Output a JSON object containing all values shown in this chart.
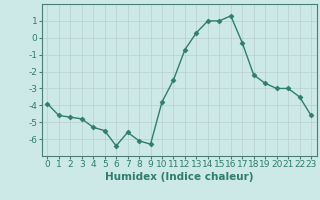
{
  "x": [
    0,
    1,
    2,
    3,
    4,
    5,
    6,
    7,
    8,
    9,
    10,
    11,
    12,
    13,
    14,
    15,
    16,
    17,
    18,
    19,
    20,
    21,
    22,
    23
  ],
  "y": [
    -3.9,
    -4.6,
    -4.7,
    -4.8,
    -5.3,
    -5.5,
    -6.4,
    -5.6,
    -6.1,
    -6.3,
    -3.8,
    -2.5,
    -0.7,
    0.3,
    1.0,
    1.0,
    1.3,
    -0.3,
    -2.2,
    -2.7,
    -3.0,
    -3.0,
    -3.5,
    -4.6
  ],
  "line_color": "#2e7d6e",
  "marker": "D",
  "markersize": 2.5,
  "linewidth": 1.0,
  "bg_color": "#cce9e8",
  "grid_color_minor": "#c8dedd",
  "grid_color_major": "#b8cecd",
  "xlabel": "Humidex (Indice chaleur)",
  "xlim": [
    -0.5,
    23.5
  ],
  "ylim": [
    -7,
    2
  ],
  "yticks": [
    1,
    0,
    -1,
    -2,
    -3,
    -4,
    -5,
    -6
  ],
  "xticks": [
    0,
    1,
    2,
    3,
    4,
    5,
    6,
    7,
    8,
    9,
    10,
    11,
    12,
    13,
    14,
    15,
    16,
    17,
    18,
    19,
    20,
    21,
    22,
    23
  ],
  "xlabel_fontsize": 7.5,
  "tick_fontsize": 6.5,
  "spine_color": "#4a7c78"
}
